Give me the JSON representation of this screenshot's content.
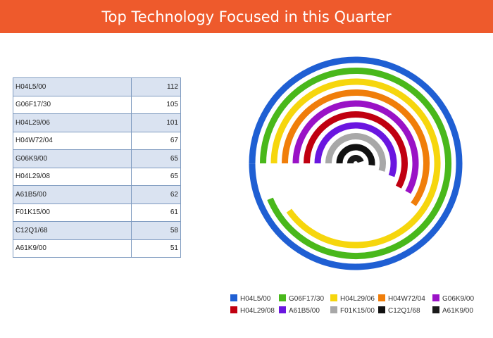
{
  "header": {
    "title": "Top Technology Focused in this Quarter"
  },
  "colors": {
    "header_bg": "#EE5A2C",
    "table_shade": "#DAE3F1",
    "table_border": "#7F9BC0"
  },
  "table": {
    "rows": [
      {
        "code": "H04L5/00",
        "value": "112"
      },
      {
        "code": "G06F17/30",
        "value": "105"
      },
      {
        "code": "H04L29/06",
        "value": "101"
      },
      {
        "code": "H04W72/04",
        "value": "67"
      },
      {
        "code": "G06K9/00",
        "value": "65"
      },
      {
        "code": "H04L29/08",
        "value": "65"
      },
      {
        "code": "A61B5/00",
        "value": "62"
      },
      {
        "code": "F01K15/00",
        "value": "61"
      },
      {
        "code": "C12Q1/68",
        "value": "58"
      },
      {
        "code": "A61K9/00",
        "value": "51"
      }
    ]
  },
  "chart_data": {
    "type": "radial-bar",
    "max_value": 112,
    "start_direction": "west",
    "direction": "clockwise",
    "legend_placement": "bottom",
    "series": [
      {
        "name": "H04L5/00",
        "value": 112,
        "color": "#1F5FD3"
      },
      {
        "name": "G06F17/30",
        "value": 105,
        "color": "#49B81B"
      },
      {
        "name": "H04L29/06",
        "value": 101,
        "color": "#F6D60D"
      },
      {
        "name": "H04W72/04",
        "value": 67,
        "color": "#F07E0A"
      },
      {
        "name": "G06K9/00",
        "value": 65,
        "color": "#9A12C6"
      },
      {
        "name": "H04L29/08",
        "value": 65,
        "color": "#C00010"
      },
      {
        "name": "A61B5/00",
        "value": 62,
        "color": "#6A16E0"
      },
      {
        "name": "F01K15/00",
        "value": 61,
        "color": "#A8A8A8"
      },
      {
        "name": "C12Q1/68",
        "value": 58,
        "color": "#111111"
      },
      {
        "name": "A61K9/00",
        "value": 51,
        "color": "#1A1A1A"
      }
    ]
  }
}
